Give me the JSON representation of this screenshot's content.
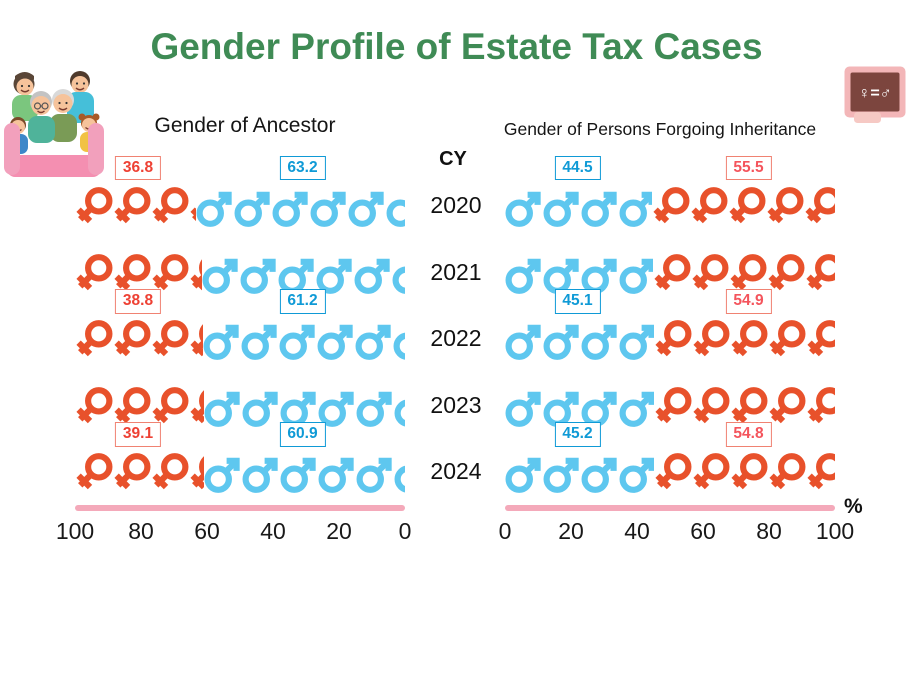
{
  "page": {
    "title": "Gender Profile of Estate Tax Cases",
    "title_color": "#3F8B55"
  },
  "panels": {
    "left_subtitle": "Gender of Ancestor",
    "right_subtitle": "Gender of Persons Forgoing Inheritance",
    "cy_label": "CY",
    "percent_label": "%"
  },
  "icons": {
    "equality_board_text": "♀=♂",
    "family_illustration": "multigenerational-family-clipart"
  },
  "colors": {
    "female_symbol": "#E8512B",
    "male_symbol": "#5EC7EF",
    "red_label_text_left": "#EE4134",
    "red_label_text_right": "#F4545C",
    "red_label_border": "#F08272",
    "blue_label": "#0F9AD6",
    "axis_line": "#F4A9BA",
    "tick_text": "#191919"
  },
  "chart_data": [
    {
      "type": "pictogram-bar",
      "panel": "left",
      "title": "Gender of Ancestor",
      "orientation": "horizontal",
      "axis": {
        "ticks": [
          100,
          80,
          60,
          40,
          20,
          0
        ],
        "range": [
          100,
          0
        ],
        "reversed": true,
        "unit": "%"
      },
      "categories": [
        "2020",
        "2021",
        "2022",
        "2023",
        "2024"
      ],
      "series": [
        {
          "name": "Female",
          "color": "#E8512B",
          "values": [
            36.8,
            38.5,
            38.8,
            39.0,
            39.1
          ]
        },
        {
          "name": "Male",
          "color": "#5EC7EF",
          "values": [
            63.2,
            61.5,
            61.2,
            61.0,
            60.9
          ]
        }
      ],
      "value_labels": [
        {
          "category": "2020",
          "female": "36.8",
          "male": "63.2"
        },
        {
          "category": "2022",
          "female": "38.8",
          "male": "61.2"
        },
        {
          "category": "2024",
          "female": "39.1",
          "male": "60.9"
        }
      ],
      "values_estimated_for": [
        "2021",
        "2023"
      ]
    },
    {
      "type": "pictogram-bar",
      "panel": "right",
      "title": "Gender of Persons Forgoing Inheritance",
      "orientation": "horizontal",
      "axis": {
        "ticks": [
          0,
          20,
          40,
          60,
          80,
          100
        ],
        "range": [
          0,
          100
        ],
        "reversed": false,
        "unit": "%"
      },
      "categories": [
        "2020",
        "2021",
        "2022",
        "2023",
        "2024"
      ],
      "series": [
        {
          "name": "Male",
          "color": "#5EC7EF",
          "values": [
            44.5,
            44.8,
            45.1,
            45.2,
            45.2
          ]
        },
        {
          "name": "Female",
          "color": "#E8512B",
          "values": [
            55.5,
            55.2,
            54.9,
            54.8,
            54.8
          ]
        }
      ],
      "value_labels": [
        {
          "category": "2020",
          "male": "44.5",
          "female": "55.5"
        },
        {
          "category": "2022",
          "male": "45.1",
          "female": "54.9"
        },
        {
          "category": "2024",
          "male": "45.2",
          "female": "54.8"
        }
      ],
      "values_estimated_for": [
        "2021",
        "2023"
      ]
    }
  ]
}
